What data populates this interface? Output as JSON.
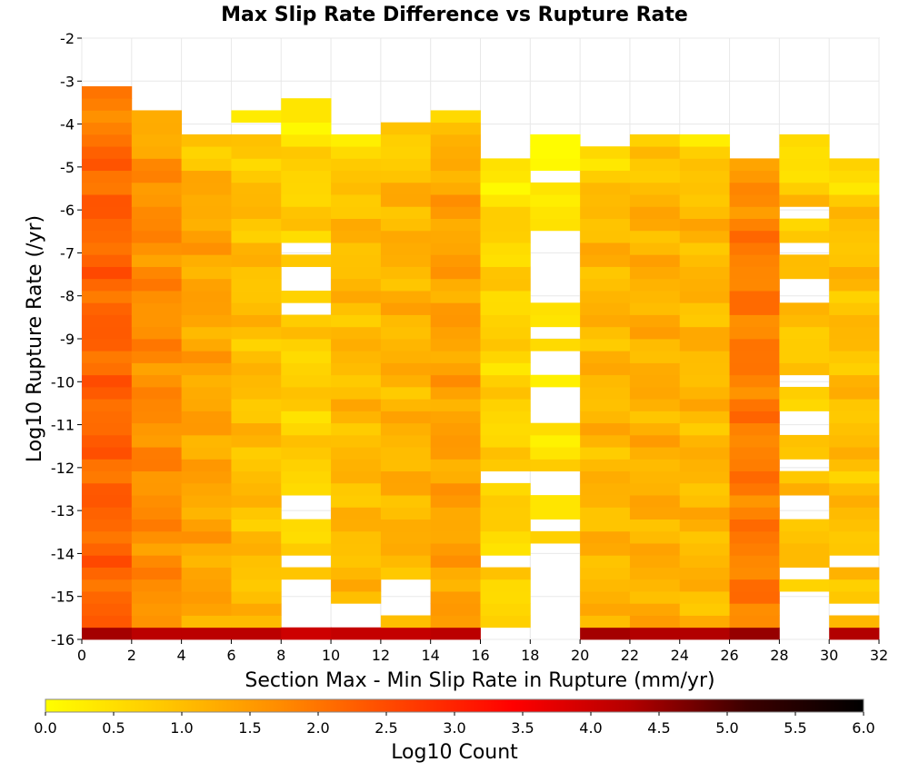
{
  "chart_data": {
    "type": "heatmap",
    "title": "Max Slip Rate Difference vs Rupture Rate",
    "xlabel": "Section Max - Min Slip Rate in Rupture (mm/yr)",
    "ylabel": "Log10 Rupture Rate (/yr)",
    "x_ticks": [
      "0",
      "2",
      "4",
      "6",
      "8",
      "10",
      "12",
      "14",
      "16",
      "18",
      "20",
      "22",
      "24",
      "26",
      "28",
      "30",
      "32"
    ],
    "y_ticks": [
      "-2",
      "-3",
      "-4",
      "-5",
      "-6",
      "-7",
      "-8",
      "-9",
      "-10",
      "-11",
      "-12",
      "-13",
      "-14",
      "-15",
      "-16"
    ],
    "xlim": [
      0,
      32
    ],
    "ylim": [
      -16,
      -2
    ],
    "colorbar": {
      "label": "Log10 Count",
      "ticks": [
        "0.0",
        "0.5",
        "1.0",
        "1.5",
        "2.0",
        "2.5",
        "3.0",
        "3.5",
        "4.0",
        "4.5",
        "5.0",
        "5.5",
        "6.0"
      ],
      "range": [
        0,
        6
      ],
      "stops": [
        "#ffff00",
        "#ffc800",
        "#ff8c00",
        "#ff4500",
        "#ff0000",
        "#b40000",
        "#3c0000",
        "#000000"
      ]
    },
    "bins": {
      "x_start": 0,
      "x_step": 2,
      "x_count": 16,
      "y_start": -16,
      "y_step": 0.28,
      "y_count": 50
    },
    "columns": [
      {
        "x": 0,
        "ytop": -3.0,
        "base": 2.2,
        "edge": 4.4,
        "gaps": []
      },
      {
        "x": 2,
        "ytop": -3.56,
        "base": 1.7,
        "edge": 4.2,
        "gaps": []
      },
      {
        "x": 4,
        "ytop": -4.12,
        "base": 1.35,
        "edge": 4.2,
        "gaps": []
      },
      {
        "x": 6,
        "ytop": -3.56,
        "base": 1.0,
        "edge": 4.2,
        "gaps": [
          [
            -4.12,
            -3.84
          ]
        ]
      },
      {
        "x": 8,
        "ytop": -3.28,
        "base": 0.75,
        "edge": 4.0,
        "gaps": [
          [
            -6.92,
            -6.64
          ],
          [
            -7.76,
            -7.2
          ],
          [
            -8.32,
            -8.04
          ],
          [
            -13.08,
            -12.52
          ],
          [
            -14.2,
            -13.92
          ],
          [
            -15.6,
            -14.48
          ]
        ]
      },
      {
        "x": 10,
        "ytop": -4.12,
        "base": 1.05,
        "edge": 4.1,
        "gaps": [
          [
            -15.6,
            -15.04
          ]
        ]
      },
      {
        "x": 12,
        "ytop": -3.84,
        "base": 1.15,
        "edge": 4.1,
        "gaps": [
          [
            -15.32,
            -14.48
          ]
        ]
      },
      {
        "x": 14,
        "ytop": -3.56,
        "base": 1.4,
        "edge": 4.2,
        "gaps": []
      },
      {
        "x": 16,
        "ytop": -4.68,
        "base": 0.7,
        "edge": 4.1,
        "gaps": [
          [
            -12.24,
            -11.96
          ],
          [
            -14.2,
            -13.92
          ],
          [
            -15.88,
            -15.6
          ]
        ]
      },
      {
        "x": 18,
        "ytop": -4.12,
        "base": 0.5,
        "edge": 3.2,
        "gaps": [
          [
            -5.24,
            -4.96
          ],
          [
            -8.04,
            -6.36
          ],
          [
            -8.88,
            -8.6
          ],
          [
            -9.72,
            -9.16
          ],
          [
            -10.84,
            -10.0
          ],
          [
            -12.52,
            -11.96
          ],
          [
            -13.36,
            -13.08
          ],
          [
            -15.88,
            -13.64
          ]
        ]
      },
      {
        "x": 20,
        "ytop": -4.4,
        "base": 1.1,
        "edge": 4.4,
        "gaps": []
      },
      {
        "x": 22,
        "ytop": -4.12,
        "base": 1.2,
        "edge": 4.3,
        "gaps": []
      },
      {
        "x": 24,
        "ytop": -4.12,
        "base": 1.1,
        "edge": 4.3,
        "gaps": []
      },
      {
        "x": 26,
        "ytop": -4.68,
        "base": 1.9,
        "edge": 4.5,
        "gaps": []
      },
      {
        "x": 28,
        "ytop": -4.12,
        "base": 0.9,
        "edge": 3.4,
        "gaps": [
          [
            -6.08,
            -5.8
          ],
          [
            -6.92,
            -6.64
          ],
          [
            -8.04,
            -7.48
          ],
          [
            -10.0,
            -9.72
          ],
          [
            -11.12,
            -10.56
          ],
          [
            -11.96,
            -11.68
          ],
          [
            -13.08,
            -12.52
          ],
          [
            -14.48,
            -14.2
          ],
          [
            -15.88,
            -14.76
          ]
        ]
      },
      {
        "x": 30,
        "ytop": -4.68,
        "base": 1.0,
        "edge": 4.3,
        "gaps": [
          [
            -14.2,
            -13.92
          ],
          [
            -15.32,
            -15.04
          ]
        ]
      }
    ]
  }
}
